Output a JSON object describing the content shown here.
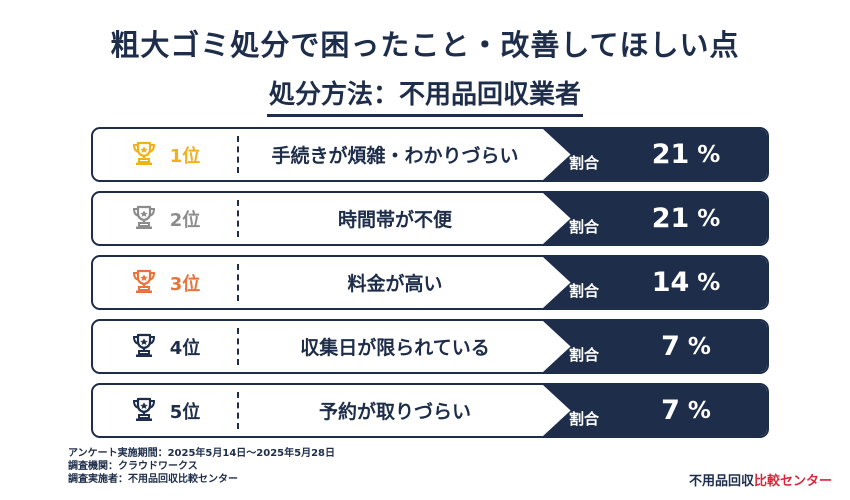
{
  "title": "粗大ゴミ処分で困ったこと・改善してほしい点",
  "subtitle": "処分方法：不用品回収業者",
  "ratio_label": "割合",
  "rows": [
    {
      "rank": "1位",
      "reason": "手続きが煩雑・わかりづらい",
      "value": "21",
      "unit": "%",
      "icon": "trophy-icon-gold",
      "color": "#f2b01e"
    },
    {
      "rank": "2位",
      "reason": "時間帯が不便",
      "value": "21",
      "unit": "%",
      "icon": "trophy-icon-silver",
      "color": "#8c8c8c"
    },
    {
      "rank": "3位",
      "reason": "料金が高い",
      "value": "14",
      "unit": "%",
      "icon": "trophy-icon-bronze",
      "color": "#e8743b"
    },
    {
      "rank": "4位",
      "reason": "収集日が限られている",
      "value": "7",
      "unit": "%",
      "icon": "trophy-icon-navy",
      "color": "#1d2d4a"
    },
    {
      "rank": "5位",
      "reason": "予約が取りづらい",
      "value": "7",
      "unit": "%",
      "icon": "trophy-icon-navy",
      "color": "#1d2d4a"
    }
  ],
  "notes": [
    "アンケート実施期間：2025年5月14日〜2025年5月28日",
    "調査機関：クラウドワークス",
    "調査実施者：不用品回収比較センター"
  ],
  "logo": {
    "part1": "不用品回収",
    "part2": "比較センター"
  },
  "colors": {
    "navy": "#1d2d4a",
    "logo_red": "#d6283b"
  }
}
